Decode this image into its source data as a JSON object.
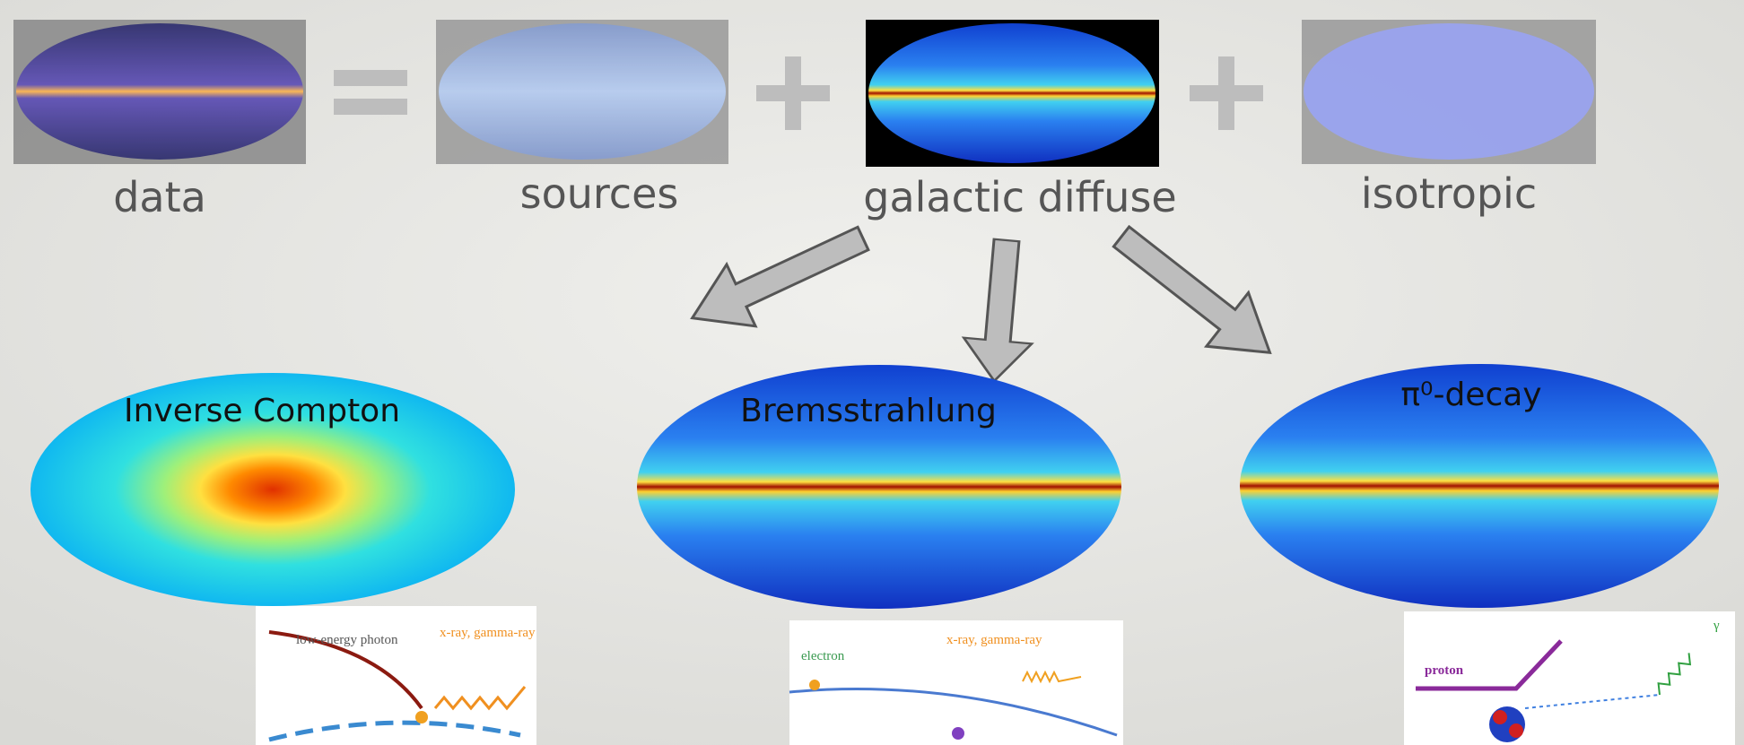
{
  "top_row": [
    {
      "label": "data"
    },
    {
      "label": "sources"
    },
    {
      "label": "galactic diffuse"
    },
    {
      "label": "isotropic"
    }
  ],
  "components": [
    {
      "label": "Inverse Compton"
    },
    {
      "label": "Bremsstrahlung"
    },
    {
      "label": "π⁰-decay"
    }
  ],
  "diagrams": [
    {
      "labels": [
        "low-energy photon",
        "x-ray, gamma-ray"
      ]
    },
    {
      "labels": [
        "electron",
        "x-ray, gamma-ray"
      ]
    },
    {
      "labels": [
        "proton",
        "γ"
      ]
    }
  ]
}
